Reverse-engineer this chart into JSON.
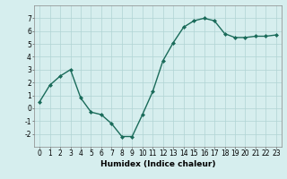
{
  "x": [
    0,
    1,
    2,
    3,
    4,
    5,
    6,
    7,
    8,
    9,
    10,
    11,
    12,
    13,
    14,
    15,
    16,
    17,
    18,
    19,
    20,
    21,
    22,
    23
  ],
  "y": [
    0.5,
    1.8,
    2.5,
    3.0,
    0.8,
    -0.3,
    -0.5,
    -1.2,
    -2.2,
    -2.2,
    -0.5,
    1.3,
    3.7,
    5.1,
    6.3,
    6.8,
    7.0,
    6.8,
    5.8,
    5.5,
    5.5,
    5.6,
    5.6,
    5.7
  ],
  "line_color": "#1a6b5a",
  "marker": "D",
  "marker_size": 2,
  "bg_color": "#d6eeee",
  "grid_color": "#b0d4d4",
  "xlabel": "Humidex (Indice chaleur)",
  "ylim": [
    -3,
    8
  ],
  "xlim": [
    -0.5,
    23.5
  ],
  "yticks": [
    -2,
    -1,
    0,
    1,
    2,
    3,
    4,
    5,
    6,
    7
  ],
  "xticks": [
    0,
    1,
    2,
    3,
    4,
    5,
    6,
    7,
    8,
    9,
    10,
    11,
    12,
    13,
    14,
    15,
    16,
    17,
    18,
    19,
    20,
    21,
    22,
    23
  ],
  "xlabel_fontsize": 6.5,
  "tick_fontsize": 5.5,
  "line_width": 1.0
}
